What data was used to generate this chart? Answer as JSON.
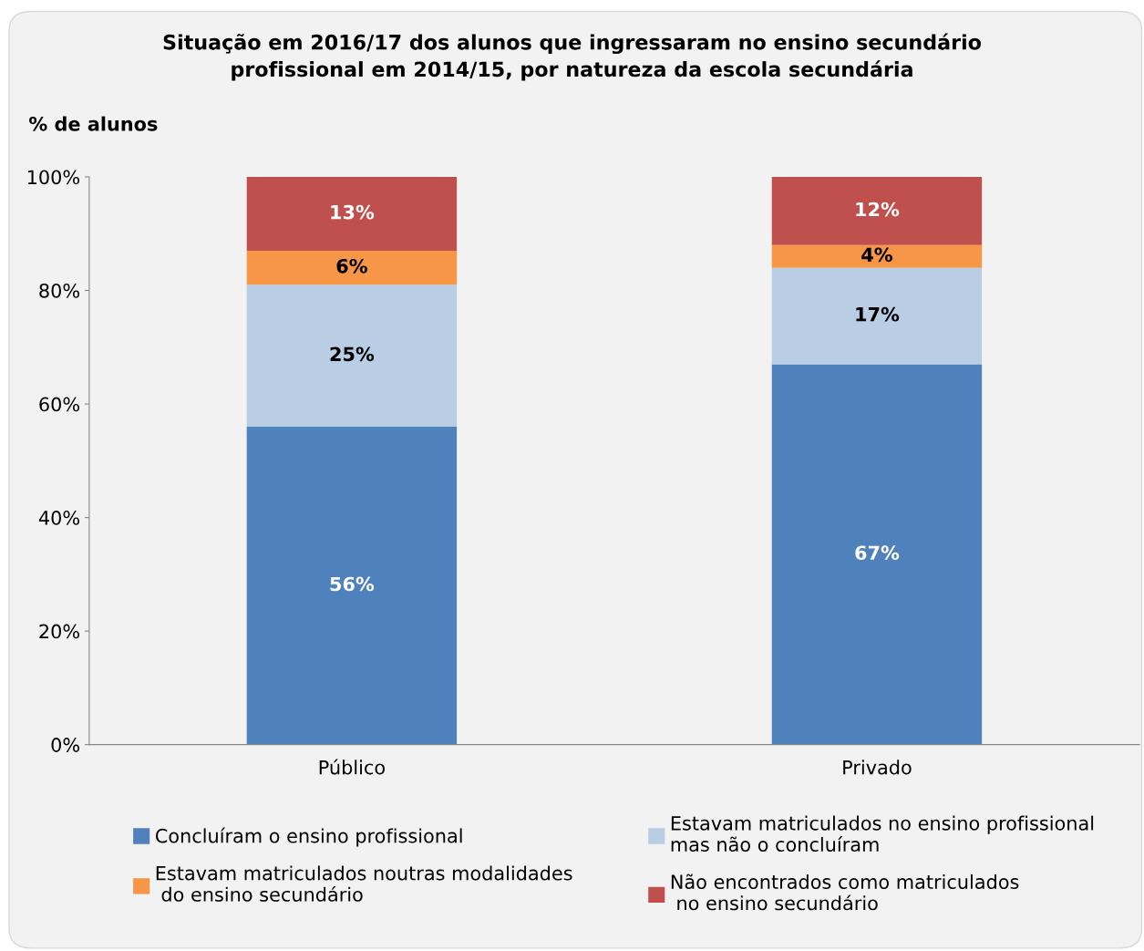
{
  "chart_data": {
    "type": "bar",
    "stacked": true,
    "title": "Situação em 2016/17 dos alunos que ingressaram no ensino secundário\nprofissional em 2014/15, por natureza da escola secundária",
    "ylabel": "% de alunos",
    "categories": [
      "Público",
      "Privado"
    ],
    "series": [
      {
        "name": "Concluíram o ensino profissional",
        "color": "#4f81bd",
        "values": [
          56,
          67
        ],
        "value_labels": [
          "56%",
          "67%"
        ]
      },
      {
        "name": "Estavam matriculados no ensino profissional\nmas não o concluíram",
        "color": "#b9cde5",
        "values": [
          25,
          17
        ],
        "value_labels": [
          "25%",
          "17%"
        ]
      },
      {
        "name": "Estavam matriculados noutras modalidades\n do ensino secundário",
        "color": "#f79646",
        "values": [
          6,
          4
        ],
        "value_labels": [
          "6%",
          "4%"
        ]
      },
      {
        "name": "Não encontrados como matriculados\n no ensino secundário",
        "color": "#c0504d",
        "values": [
          13,
          12
        ],
        "value_labels": [
          "13%",
          "12%"
        ]
      }
    ],
    "ylim": [
      0,
      100
    ],
    "yticks": [
      {
        "value": 0,
        "label": "0%"
      },
      {
        "value": 20,
        "label": "20%"
      },
      {
        "value": 40,
        "label": "40%"
      },
      {
        "value": 60,
        "label": "60%"
      },
      {
        "value": 80,
        "label": "80%"
      },
      {
        "value": 100,
        "label": "100%"
      }
    ],
    "grid": false,
    "legend": "bottom"
  }
}
